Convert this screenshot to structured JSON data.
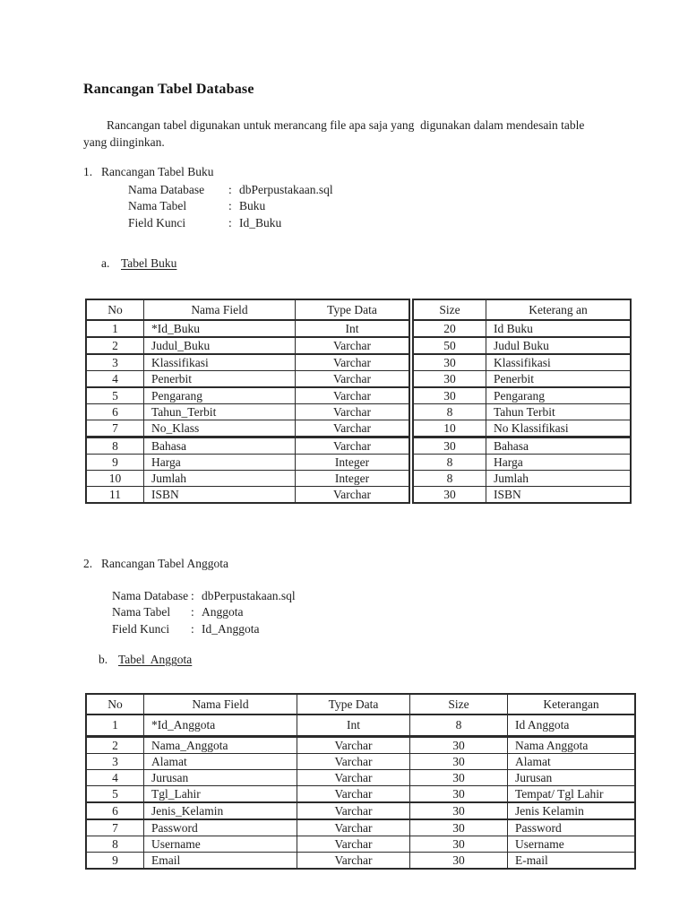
{
  "document": {
    "title": "Rancangan Tabel Database",
    "intro": "Rancangan tabel digunakan untuk merancang file apa saja yang  digunakan dalam mendesain table yang diinginkan.",
    "sections": [
      {
        "number": "1.",
        "heading": "Rancangan Tabel Buku",
        "meta": [
          {
            "label": "Nama Database",
            "sep": ":",
            "value": "dbPerpustakaan.sql"
          },
          {
            "label": "Nama Tabel",
            "sep": ":",
            "value": "Buku"
          },
          {
            "label": "Field Kunci",
            "sep": ":",
            "value": "Id_Buku"
          }
        ],
        "sub": {
          "letter": "a.",
          "title": "Tabel Buku"
        },
        "table": {
          "headers": [
            "No",
            "Nama Field",
            "Type Data",
            "Size",
            "Keterang an"
          ],
          "rows": [
            [
              "1",
              "*Id_Buku",
              "Int",
              "20",
              "Id Buku"
            ],
            [
              "2",
              "Judul_Buku",
              "Varchar",
              "50",
              "Judul Buku"
            ],
            [
              "3",
              "Klassifikasi",
              "Varchar",
              "30",
              "Klassifikasi"
            ],
            [
              "4",
              "Penerbit",
              "Varchar",
              "30",
              "Penerbit"
            ],
            [
              "5",
              "Pengarang",
              "Varchar",
              "30",
              "Pengarang"
            ],
            [
              "6",
              "Tahun_Terbit",
              "Varchar",
              "8",
              "Tahun Terbit"
            ],
            [
              "7",
              "No_Klass",
              "Varchar",
              "10",
              "No Klassifikasi"
            ],
            [
              "8",
              "Bahasa",
              "Varchar",
              "30",
              "Bahasa"
            ],
            [
              "9",
              "Harga",
              "Integer",
              "8",
              "Harga"
            ],
            [
              "10",
              "Jumlah",
              "Integer",
              "8",
              "Jumlah"
            ],
            [
              "11",
              "ISBN",
              "Varchar",
              "30",
              "ISBN"
            ]
          ]
        }
      },
      {
        "number": "2.",
        "heading": "Rancangan Tabel Anggota",
        "meta": [
          {
            "label": "Nama Database",
            "sep": ":",
            "value": "dbPerpustakaan.sql"
          },
          {
            "label": "Nama Tabel",
            "sep": ":",
            "value": "Anggota"
          },
          {
            "label": "Field Kunci",
            "sep": ":",
            "value": "Id_Anggota"
          }
        ],
        "sub": {
          "letter": "b.",
          "title": "Tabel  Anggota"
        },
        "table": {
          "headers": [
            "No",
            "Nama Field",
            "Type Data",
            "Size",
            "Keterangan"
          ],
          "rows": [
            [
              "1",
              "*Id_Anggota",
              "Int",
              "8",
              "Id Anggota"
            ],
            [
              "2",
              "Nama_Anggota",
              "Varchar",
              "30",
              "Nama Anggota"
            ],
            [
              "3",
              "Alamat",
              "Varchar",
              "30",
              "Alamat"
            ],
            [
              "4",
              "Jurusan",
              "Varchar",
              "30",
              "Jurusan"
            ],
            [
              "5",
              "Tgl_Lahir",
              "Varchar",
              "30",
              "Tempat/ Tgl Lahir"
            ],
            [
              "6",
              "Jenis_Kelamin",
              "Varchar",
              "30",
              "Jenis Kelamin"
            ],
            [
              "7",
              "Password",
              "Varchar",
              "30",
              "Password"
            ],
            [
              "8",
              "Username",
              "Varchar",
              "30",
              "Username"
            ],
            [
              "9",
              "Email",
              "Varchar",
              "30",
              "E-mail"
            ]
          ]
        }
      }
    ]
  }
}
